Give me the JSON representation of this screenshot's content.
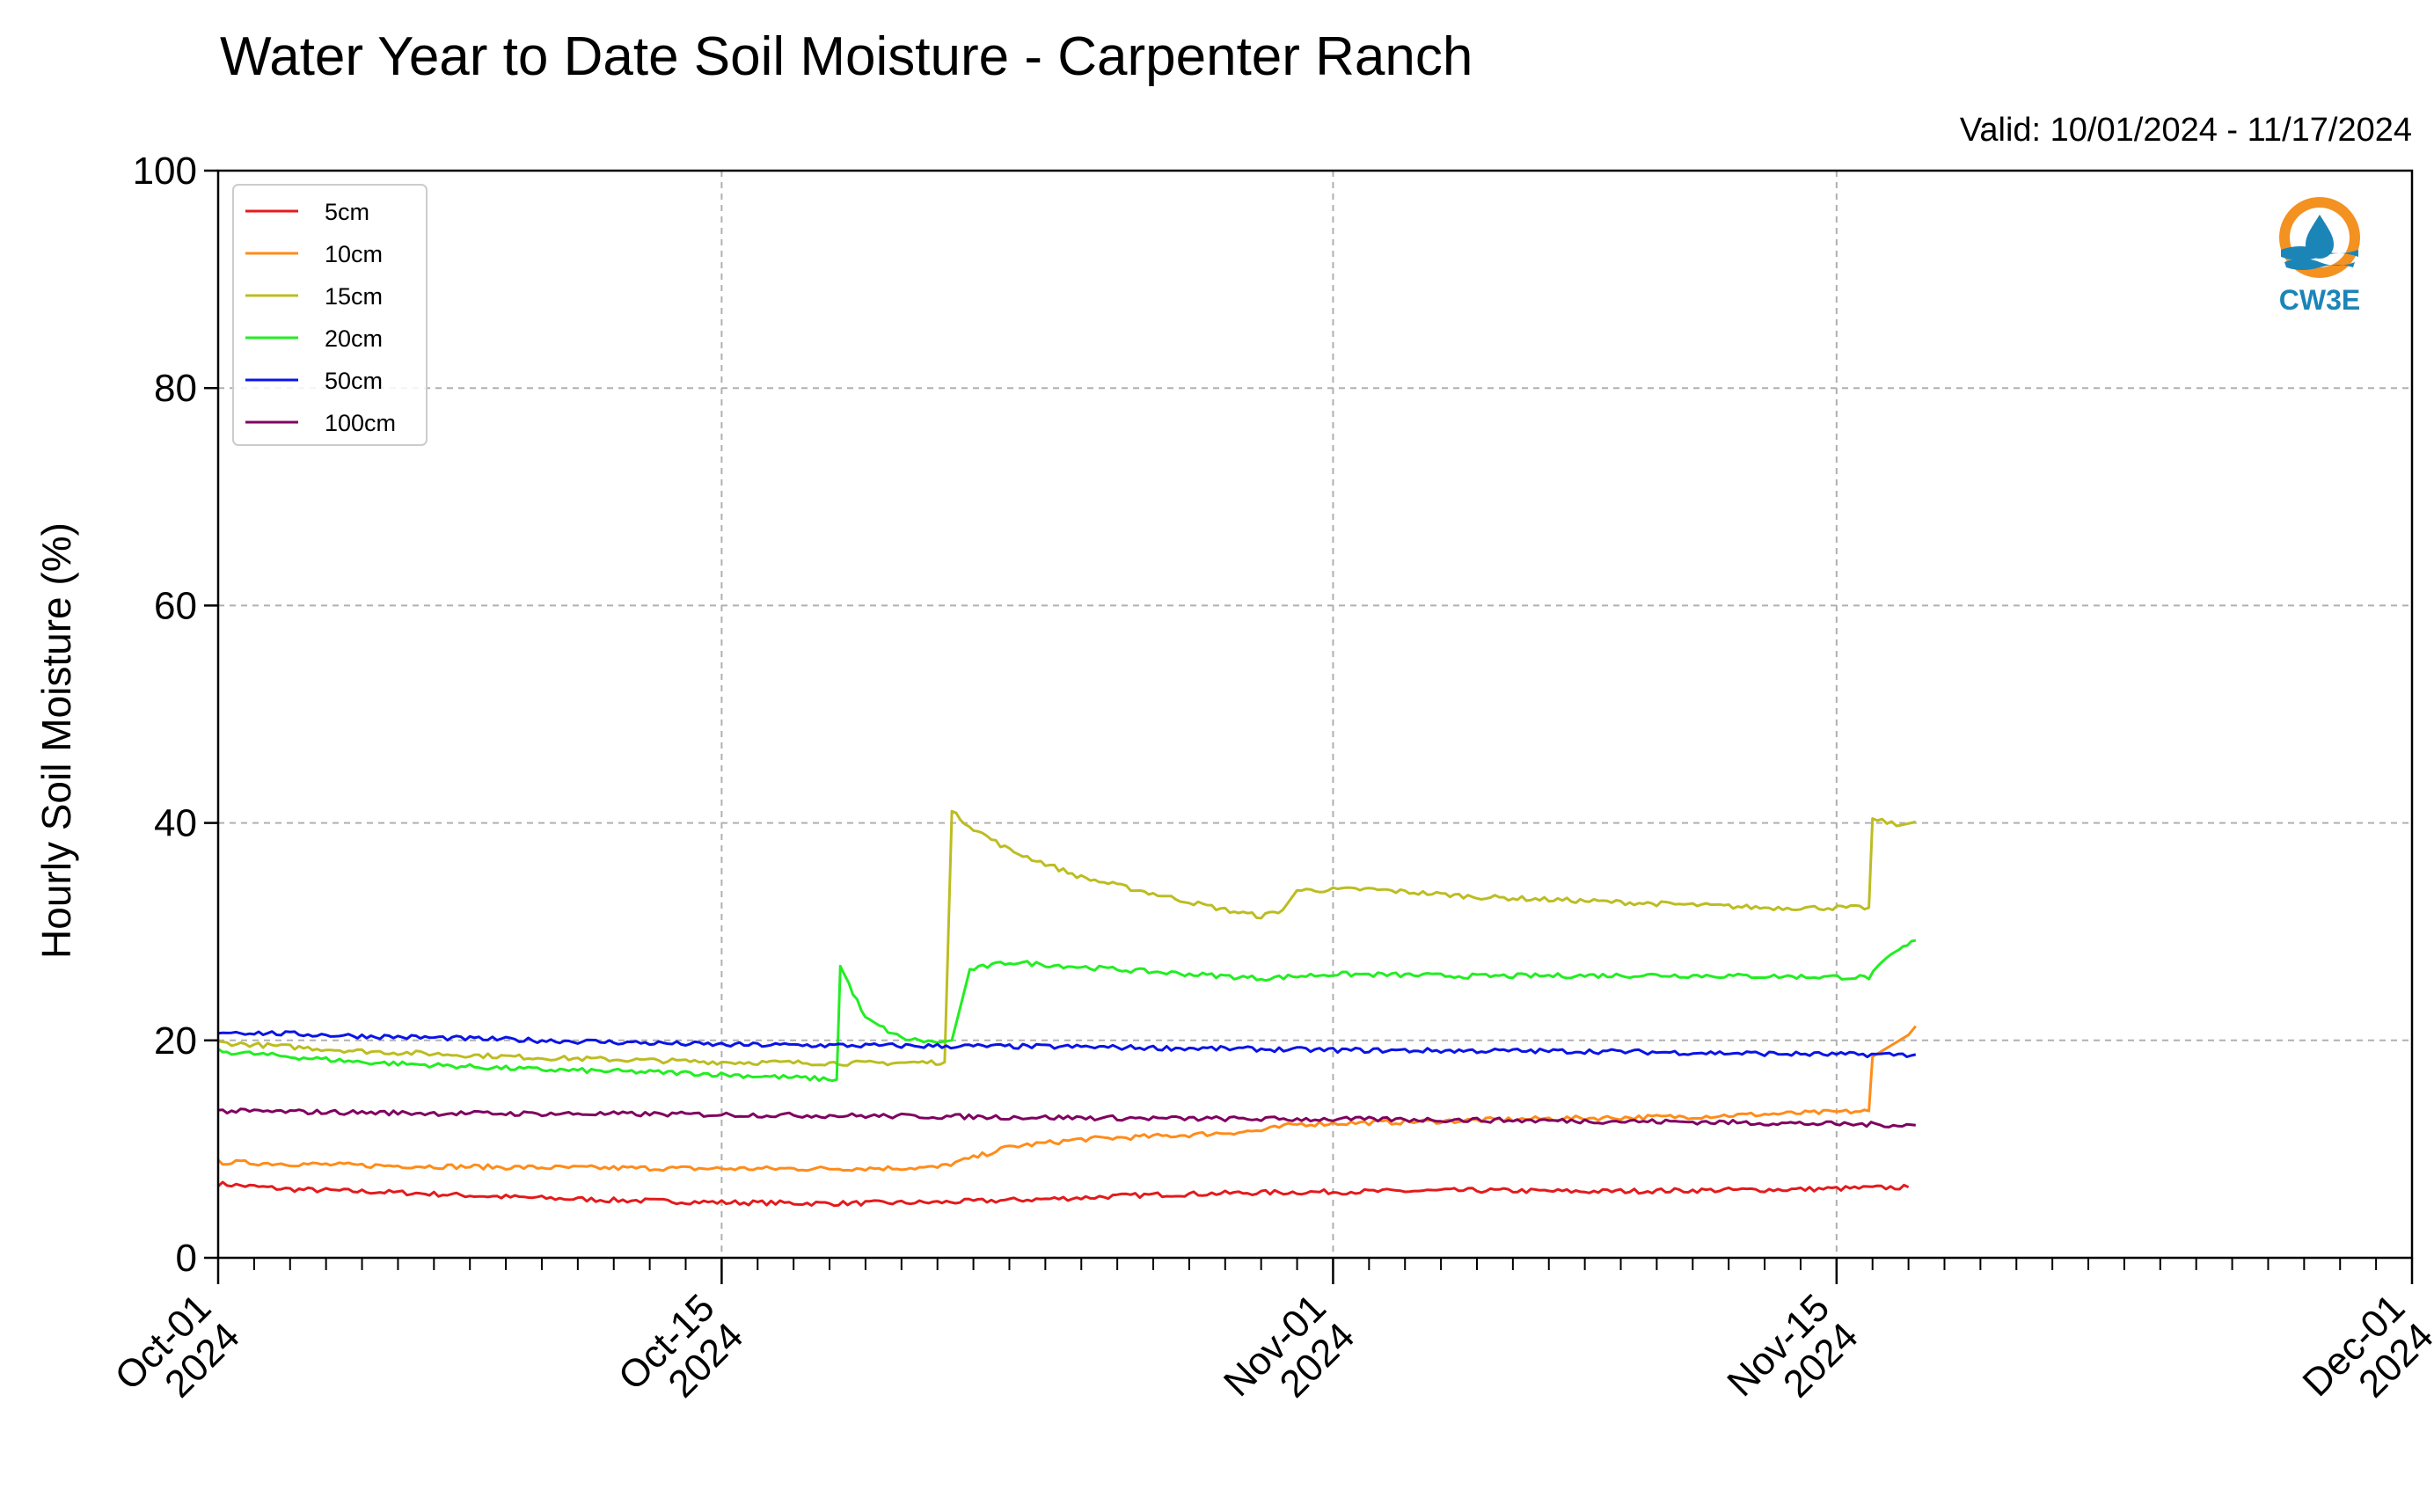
{
  "chart_data": {
    "type": "line",
    "title": "Water Year to Date Soil Moisture - Carpenter Ranch",
    "subtitle": "Valid: 10/01/2024 - 11/17/2024",
    "xlabel": "",
    "ylabel": "Hourly Soil Moisture (%)",
    "xlim": [
      "2024-10-01",
      "2024-12-01"
    ],
    "ylim": [
      0,
      100
    ],
    "yticks": [
      0,
      20,
      40,
      60,
      80,
      100
    ],
    "xticks": [
      {
        "date": "2024-10-01",
        "label": "Oct-01",
        "year": "2024"
      },
      {
        "date": "2024-10-15",
        "label": "Oct-15",
        "year": "2024"
      },
      {
        "date": "2024-11-01",
        "label": "Nov-01",
        "year": "2024"
      },
      {
        "date": "2024-11-15",
        "label": "Nov-15",
        "year": "2024"
      },
      {
        "date": "2024-12-01",
        "label": "Dec-01",
        "year": "2024"
      }
    ],
    "grid": true,
    "legend_position": "top-left",
    "series": [
      {
        "name": "5cm",
        "color": "#e41a1c",
        "points": [
          [
            "2024-10-01",
            6.8
          ],
          [
            "2024-10-03",
            6.3
          ],
          [
            "2024-10-06",
            6.0
          ],
          [
            "2024-10-09",
            5.6
          ],
          [
            "2024-10-12",
            5.3
          ],
          [
            "2024-10-15",
            5.1
          ],
          [
            "2024-10-18",
            5.0
          ],
          [
            "2024-10-21",
            5.1
          ],
          [
            "2024-10-24",
            5.4
          ],
          [
            "2024-10-27",
            5.8
          ],
          [
            "2024-10-30",
            6.0
          ],
          [
            "2024-11-02",
            6.1
          ],
          [
            "2024-11-05",
            6.2
          ],
          [
            "2024-11-08",
            6.1
          ],
          [
            "2024-11-11",
            6.2
          ],
          [
            "2024-11-14",
            6.3
          ],
          [
            "2024-11-17",
            6.5
          ]
        ]
      },
      {
        "name": "10cm",
        "color": "#ff8c1a",
        "points": [
          [
            "2024-10-01",
            8.8
          ],
          [
            "2024-10-05",
            8.5
          ],
          [
            "2024-10-10",
            8.3
          ],
          [
            "2024-10-15",
            8.2
          ],
          [
            "2024-10-18",
            8.2
          ],
          [
            "2024-10-21",
            8.3
          ],
          [
            "2024-10-22",
            9.2
          ],
          [
            "2024-10-23",
            10.2
          ],
          [
            "2024-10-25",
            10.9
          ],
          [
            "2024-10-28",
            11.3
          ],
          [
            "2024-10-30",
            11.7
          ],
          [
            "2024-10-31",
            12.3
          ],
          [
            "2024-11-03",
            12.5
          ],
          [
            "2024-11-07",
            12.8
          ],
          [
            "2024-11-11",
            13.0
          ],
          [
            "2024-11-14",
            13.3
          ],
          [
            "2024-11-15.9",
            13.5
          ],
          [
            "2024-11-16.0",
            18.5
          ],
          [
            "2024-11-16.5",
            19.5
          ],
          [
            "2024-11-17",
            20.5
          ],
          [
            "2024-11-17.2",
            21.3
          ]
        ]
      },
      {
        "name": "15cm",
        "color": "#bcbd22",
        "points": [
          [
            "2024-10-01",
            19.8
          ],
          [
            "2024-10-05",
            19.0
          ],
          [
            "2024-10-10",
            18.4
          ],
          [
            "2024-10-15",
            18.0
          ],
          [
            "2024-10-19",
            17.9
          ],
          [
            "2024-10-21.2",
            18.0
          ],
          [
            "2024-10-21.4",
            41.0
          ],
          [
            "2024-10-22",
            39.5
          ],
          [
            "2024-10-23",
            37.5
          ],
          [
            "2024-10-25",
            35.0
          ],
          [
            "2024-10-27",
            33.5
          ],
          [
            "2024-10-29",
            32.0
          ],
          [
            "2024-10-30",
            31.4
          ],
          [
            "2024-10-30.6",
            32.0
          ],
          [
            "2024-10-31",
            33.8
          ],
          [
            "2024-11-02",
            33.9
          ],
          [
            "2024-11-05",
            33.2
          ],
          [
            "2024-11-09",
            32.7
          ],
          [
            "2024-11-13",
            32.2
          ],
          [
            "2024-11-15.9",
            32.2
          ],
          [
            "2024-11-16.0",
            40.3
          ],
          [
            "2024-11-16.8",
            39.8
          ],
          [
            "2024-11-17.2",
            40.1
          ]
        ]
      },
      {
        "name": "20cm",
        "color": "#22ee22",
        "points": [
          [
            "2024-10-01",
            19.0
          ],
          [
            "2024-10-05",
            18.0
          ],
          [
            "2024-10-10",
            17.3
          ],
          [
            "2024-10-14",
            17.0
          ],
          [
            "2024-10-18.2",
            16.4
          ],
          [
            "2024-10-18.3",
            26.8
          ],
          [
            "2024-10-19",
            22.0
          ],
          [
            "2024-10-20",
            20.2
          ],
          [
            "2024-10-21",
            19.8
          ],
          [
            "2024-10-21.4",
            20.0
          ],
          [
            "2024-10-21.9",
            26.5
          ],
          [
            "2024-10-23",
            27.2
          ],
          [
            "2024-10-27",
            26.3
          ],
          [
            "2024-10-30",
            25.7
          ],
          [
            "2024-11-01",
            26.1
          ],
          [
            "2024-11-05",
            25.9
          ],
          [
            "2024-11-10",
            26.0
          ],
          [
            "2024-11-15.9",
            25.8
          ],
          [
            "2024-11-16.5",
            27.8
          ],
          [
            "2024-11-17.2",
            29.2
          ]
        ]
      },
      {
        "name": "50cm",
        "color": "#0a14e6",
        "points": [
          [
            "2024-10-01",
            20.8
          ],
          [
            "2024-10-05",
            20.4
          ],
          [
            "2024-10-10",
            20.0
          ],
          [
            "2024-10-15",
            19.6
          ],
          [
            "2024-10-20",
            19.5
          ],
          [
            "2024-10-25",
            19.4
          ],
          [
            "2024-11-01",
            19.1
          ],
          [
            "2024-11-08",
            19.0
          ],
          [
            "2024-11-15",
            18.7
          ],
          [
            "2024-11-17.2",
            18.7
          ]
        ]
      },
      {
        "name": "100cm",
        "color": "#800060",
        "points": [
          [
            "2024-10-01",
            13.5
          ],
          [
            "2024-10-07",
            13.3
          ],
          [
            "2024-10-14",
            13.2
          ],
          [
            "2024-10-21",
            13.0
          ],
          [
            "2024-10-28",
            12.8
          ],
          [
            "2024-11-04",
            12.7
          ],
          [
            "2024-11-11",
            12.5
          ],
          [
            "2024-11-17.2",
            12.2
          ]
        ]
      }
    ]
  },
  "logo": {
    "text": "CW3E",
    "ring_color": "#f39121",
    "wave_color": "#1b85b8"
  }
}
